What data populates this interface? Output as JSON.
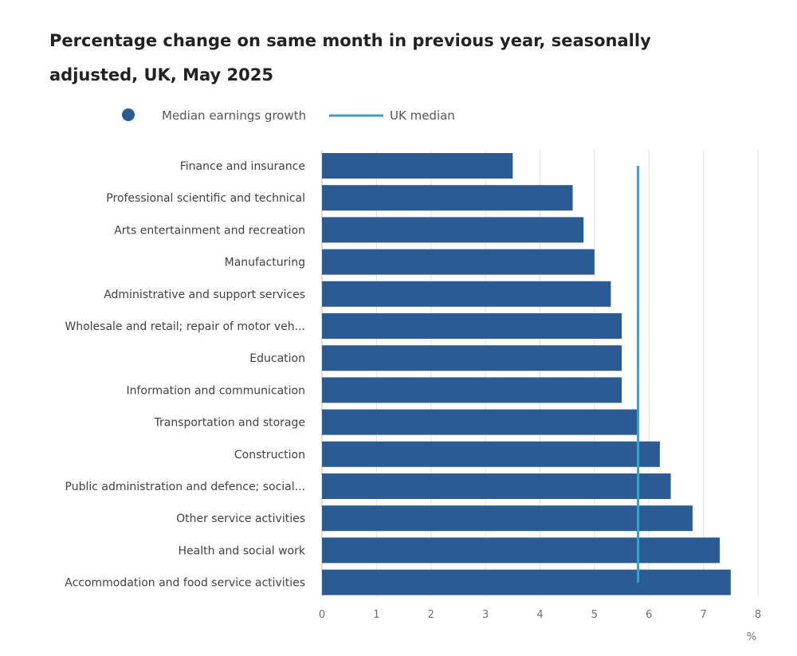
{
  "title": "Percentage change on same month in previous year, seasonally adjusted, UK, May 2025",
  "colors": {
    "bar": "#2a5b94",
    "median_line": "#3a9fcf",
    "grid": "#e2e2e2",
    "axis": "#bdbdbd"
  },
  "legend": {
    "position": "top-left",
    "items": [
      {
        "label": "Median earnings growth",
        "marker": "circle"
      },
      {
        "label": "UK median",
        "marker": "line"
      }
    ]
  },
  "chart_data": {
    "type": "bar",
    "orientation": "horizontal",
    "categories": [
      "Finance and insurance",
      "Professional scientific and technical",
      "Arts entertainment and recreation",
      "Manufacturing",
      "Administrative and support services",
      "Wholesale and retail; repair of motor veh...",
      "Education",
      "Information and communication",
      "Transportation and storage",
      "Construction",
      "Public administration and defence; social...",
      "Other service activities",
      "Health and social work",
      "Accommodation and food service activities"
    ],
    "series": [
      {
        "name": "Median earnings growth",
        "values": [
          3.5,
          4.6,
          4.8,
          5.0,
          5.3,
          5.5,
          5.5,
          5.5,
          5.8,
          6.2,
          6.4,
          6.8,
          7.3,
          7.5
        ]
      }
    ],
    "reference_line": {
      "name": "UK median",
      "value": 5.8
    },
    "xlim": [
      0,
      8
    ],
    "xticks": [
      0,
      1,
      2,
      3,
      4,
      5,
      6,
      7,
      8
    ],
    "xlabel": "%",
    "grid": true
  }
}
